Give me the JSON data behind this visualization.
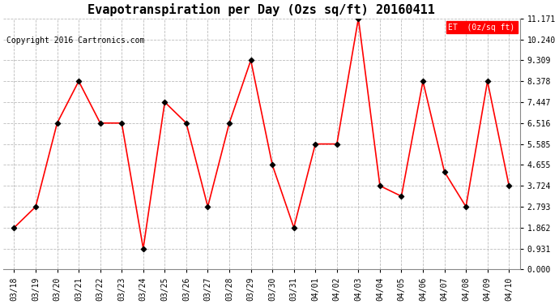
{
  "title": "Evapotranspiration per Day (Ozs sq/ft) 20160411",
  "copyright": "Copyright 2016 Cartronics.com",
  "legend_label": "ET  (0z/sq ft)",
  "x_labels": [
    "03/18",
    "03/19",
    "03/20",
    "03/21",
    "03/22",
    "03/23",
    "03/24",
    "03/25",
    "03/26",
    "03/27",
    "03/28",
    "03/29",
    "03/30",
    "03/31",
    "04/01",
    "04/02",
    "04/03",
    "04/04",
    "04/05",
    "04/06",
    "04/07",
    "04/08",
    "04/09",
    "04/10"
  ],
  "y_values": [
    1.862,
    2.793,
    6.516,
    8.378,
    6.516,
    6.516,
    0.931,
    7.447,
    6.516,
    2.793,
    6.516,
    9.309,
    4.655,
    1.862,
    5.585,
    5.585,
    11.171,
    3.724,
    3.259,
    8.378,
    4.345,
    2.793,
    8.378,
    3.724
  ],
  "y_ticks": [
    0.0,
    0.931,
    1.862,
    2.793,
    3.724,
    4.655,
    5.585,
    6.516,
    7.447,
    8.378,
    9.309,
    10.24,
    11.171
  ],
  "line_color": "red",
  "marker_color": "black",
  "background_color": "#ffffff",
  "grid_color": "#bbbbbb",
  "legend_bg": "red",
  "legend_text_color": "white",
  "title_fontsize": 11,
  "copyright_fontsize": 7,
  "tick_fontsize": 7,
  "legend_fontsize": 7,
  "ylim": [
    0.0,
    11.171
  ]
}
